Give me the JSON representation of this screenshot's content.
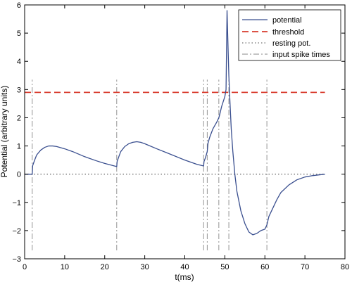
{
  "chart_data": {
    "type": "line",
    "title": "",
    "xlabel": "t(ms)",
    "ylabel": "Potential (arbitrary units)",
    "xlim": [
      0,
      80
    ],
    "ylim": [
      -3,
      6
    ],
    "xticks": [
      0,
      10,
      20,
      30,
      40,
      50,
      60,
      70,
      80
    ],
    "yticks": [
      -3,
      -2,
      -1,
      0,
      1,
      2,
      3,
      4,
      5,
      6
    ],
    "grid": false,
    "legend_position": "top-right",
    "series": [
      {
        "name": "potential",
        "style": "solid",
        "color": "#3a4f8f",
        "x": [
          0,
          1.9,
          2.0,
          2.5,
          3.0,
          4.0,
          5.0,
          6.0,
          7.0,
          8.0,
          10.0,
          12.0,
          15.0,
          18.0,
          20.0,
          23.0,
          23.1,
          23.6,
          24.0,
          25.0,
          26.0,
          27.0,
          28.0,
          29.0,
          30.0,
          33.0,
          36.0,
          40.0,
          43.0,
          44.7,
          44.8,
          45.2,
          45.6,
          45.8,
          46.2,
          47.0,
          48.0,
          48.5,
          48.7,
          49.2,
          50.0,
          50.3,
          50.55,
          50.8,
          51.0,
          51.2,
          51.6,
          52.0,
          52.5,
          53.0,
          54.0,
          55.0,
          56.0,
          57.0,
          58.0,
          59.0,
          60.0,
          60.5,
          61.0,
          62.0,
          63.0,
          64.0,
          66.0,
          68.0,
          70.0,
          72.0,
          75.0
        ],
        "y": [
          0,
          0,
          0.3,
          0.5,
          0.68,
          0.85,
          0.95,
          1.0,
          1.0,
          0.98,
          0.9,
          0.8,
          0.62,
          0.47,
          0.38,
          0.27,
          0.45,
          0.65,
          0.8,
          0.98,
          1.08,
          1.13,
          1.15,
          1.13,
          1.08,
          0.9,
          0.73,
          0.5,
          0.35,
          0.29,
          0.45,
          0.6,
          0.8,
          1.1,
          1.3,
          1.6,
          1.85,
          2.0,
          2.1,
          2.4,
          2.75,
          3.0,
          5.8,
          4.5,
          3.5,
          2.8,
          1.6,
          0.8,
          0.0,
          -0.6,
          -1.3,
          -1.75,
          -2.05,
          -2.15,
          -2.1,
          -2.0,
          -1.95,
          -1.8,
          -1.5,
          -1.2,
          -0.9,
          -0.65,
          -0.38,
          -0.2,
          -0.1,
          -0.05,
          0
        ]
      },
      {
        "name": "threshold",
        "style": "dashed",
        "color": "#d83a2c",
        "x": [
          0,
          75
        ],
        "y": [
          2.9,
          2.9
        ]
      },
      {
        "name": "resting pot.",
        "style": "dotted",
        "color": "#888888",
        "x": [
          0,
          75
        ],
        "y": [
          0,
          0
        ]
      },
      {
        "name": "input spike times",
        "style": "dashdot",
        "color": "#888888",
        "spike_times": [
          1.9,
          23.0,
          44.7,
          45.6,
          48.5,
          51.0,
          60.5
        ],
        "y_range": [
          -2.7,
          3.35
        ]
      }
    ]
  }
}
